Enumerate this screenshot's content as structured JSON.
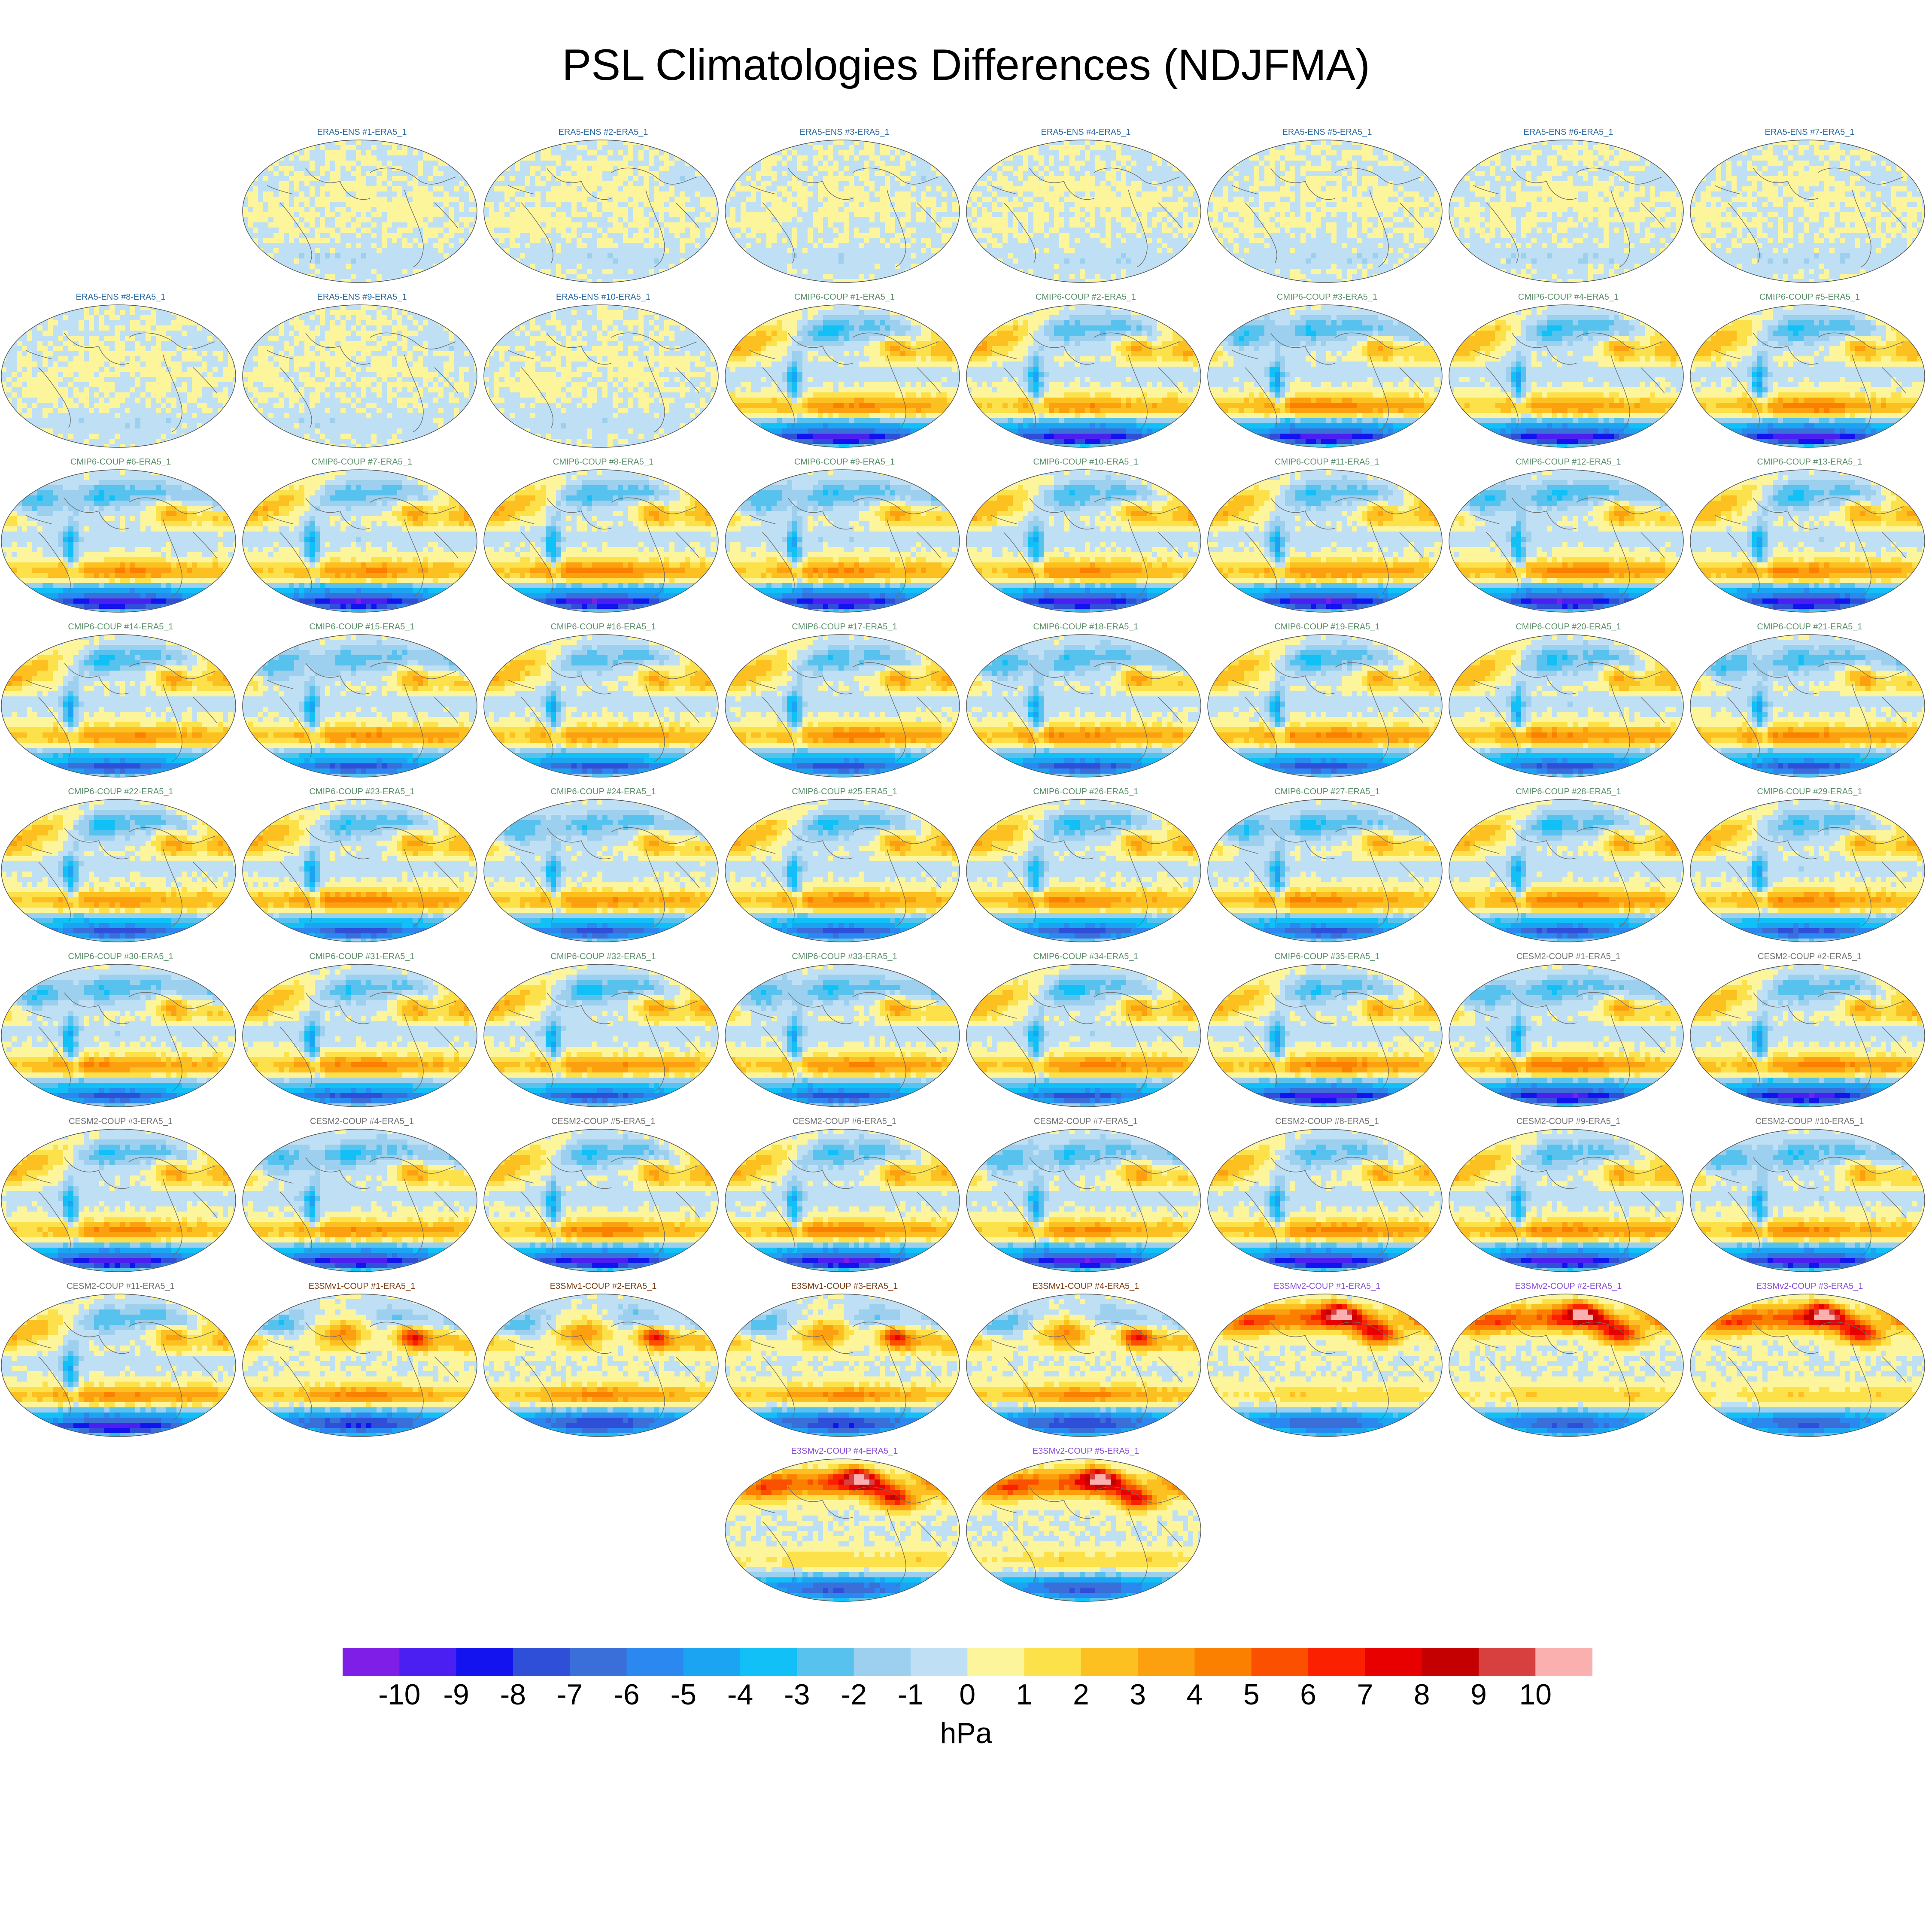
{
  "title": "PSL Climatologies Differences (NDJFMA)",
  "colors": {
    "ERA5-ENS": "#2b6aa0",
    "CMIP6-COUP": "#5a8f6a",
    "CESM2-COUP": "#707070",
    "E3SMv1-COUP": "#7a3a10",
    "E3SMv2-COUP": "#8a4fd8",
    "coastline": "#6b6b6b",
    "map_outline": "#555555"
  },
  "chart_data": {
    "type": "heatmap",
    "title": "PSL Climatologies Differences (NDJFMA)",
    "projection": "robinson",
    "variable": "PSL",
    "season": "NDJFMA",
    "units": "hPa",
    "reference": "ERA5_1",
    "grid": false,
    "colorbar": {
      "label": "hPa",
      "placement": "bottom",
      "levels": [
        -10,
        -9,
        -8,
        -7,
        -6,
        -5,
        -4,
        -3,
        -2,
        -1,
        0,
        1,
        2,
        3,
        4,
        5,
        6,
        7,
        8,
        9,
        10
      ],
      "tick_labels": [
        "-10",
        "-9",
        "-8",
        "-7",
        "-6",
        "-5",
        "-4",
        "-3",
        "-2",
        "-1",
        "0",
        "1",
        "2",
        "3",
        "4",
        "5",
        "6",
        "7",
        "8",
        "9",
        "10"
      ],
      "colors": [
        "#7e1ee6",
        "#4b1ff2",
        "#1313f0",
        "#2f4fd8",
        "#3a6ed8",
        "#2a88f0",
        "#1aa4f2",
        "#10c0f6",
        "#58c2ee",
        "#9cd0ee",
        "#bfe0f4",
        "#fdf59c",
        "#fde14a",
        "#fcc020",
        "#fca010",
        "#fb8000",
        "#fb5000",
        "#fb2000",
        "#e80000",
        "#c40000",
        "#d84040",
        "#fbb0b0"
      ]
    },
    "panels": [
      {
        "label": "ERA5-ENS   #1-ERA5_1",
        "group": "ERA5-ENS",
        "magnitude": 0.6
      },
      {
        "label": "ERA5-ENS   #2-ERA5_1",
        "group": "ERA5-ENS",
        "magnitude": 0.6
      },
      {
        "label": "ERA5-ENS   #3-ERA5_1",
        "group": "ERA5-ENS",
        "magnitude": 0.6
      },
      {
        "label": "ERA5-ENS   #4-ERA5_1",
        "group": "ERA5-ENS",
        "magnitude": 0.6
      },
      {
        "label": "ERA5-ENS   #5-ERA5_1",
        "group": "ERA5-ENS",
        "magnitude": 0.6
      },
      {
        "label": "ERA5-ENS   #6-ERA5_1",
        "group": "ERA5-ENS",
        "magnitude": 0.6
      },
      {
        "label": "ERA5-ENS   #7-ERA5_1",
        "group": "ERA5-ENS",
        "magnitude": 0.6
      },
      {
        "label": "ERA5-ENS   #8-ERA5_1",
        "group": "ERA5-ENS",
        "magnitude": 0.6
      },
      {
        "label": "ERA5-ENS   #9-ERA5_1",
        "group": "ERA5-ENS",
        "magnitude": 0.6
      },
      {
        "label": "ERA5-ENS   #10-ERA5_1",
        "group": "ERA5-ENS",
        "magnitude": 0.6
      },
      {
        "label": "CMIP6-COUP  #1-ERA5_1",
        "group": "CMIP6-COUP",
        "magnitude": 4
      },
      {
        "label": "CMIP6-COUP  #2-ERA5_1",
        "group": "CMIP6-COUP",
        "magnitude": 4
      },
      {
        "label": "CMIP6-COUP  #3-ERA5_1",
        "group": "CMIP6-COUP",
        "magnitude": 4
      },
      {
        "label": "CMIP6-COUP  #4-ERA5_1",
        "group": "CMIP6-COUP",
        "magnitude": 4
      },
      {
        "label": "CMIP6-COUP  #5-ERA5_1",
        "group": "CMIP6-COUP",
        "magnitude": 4
      },
      {
        "label": "CMIP6-COUP  #6-ERA5_1",
        "group": "CMIP6-COUP",
        "magnitude": 4
      },
      {
        "label": "CMIP6-COUP  #7-ERA5_1",
        "group": "CMIP6-COUP",
        "magnitude": 4
      },
      {
        "label": "CMIP6-COUP  #8-ERA5_1",
        "group": "CMIP6-COUP",
        "magnitude": 4
      },
      {
        "label": "CMIP6-COUP  #9-ERA5_1",
        "group": "CMIP6-COUP",
        "magnitude": 4
      },
      {
        "label": "CMIP6-COUP  #10-ERA5_1",
        "group": "CMIP6-COUP",
        "magnitude": 4
      },
      {
        "label": "CMIP6-COUP  #11-ERA5_1",
        "group": "CMIP6-COUP",
        "magnitude": 4
      },
      {
        "label": "CMIP6-COUP  #12-ERA5_1",
        "group": "CMIP6-COUP",
        "magnitude": 4
      },
      {
        "label": "CMIP6-COUP  #13-ERA5_1",
        "group": "CMIP6-COUP",
        "magnitude": 4
      },
      {
        "label": "CMIP6-COUP  #14-ERA5_1",
        "group": "CMIP6-COUP",
        "magnitude": 3
      },
      {
        "label": "CMIP6-COUP  #15-ERA5_1",
        "group": "CMIP6-COUP",
        "magnitude": 3
      },
      {
        "label": "CMIP6-COUP  #16-ERA5_1",
        "group": "CMIP6-COUP",
        "magnitude": 3
      },
      {
        "label": "CMIP6-COUP  #17-ERA5_1",
        "group": "CMIP6-COUP",
        "magnitude": 3
      },
      {
        "label": "CMIP6-COUP  #18-ERA5_1",
        "group": "CMIP6-COUP",
        "magnitude": 3
      },
      {
        "label": "CMIP6-COUP  #19-ERA5_1",
        "group": "CMIP6-COUP",
        "magnitude": 3
      },
      {
        "label": "CMIP6-COUP  #20-ERA5_1",
        "group": "CMIP6-COUP",
        "magnitude": 3
      },
      {
        "label": "CMIP6-COUP  #21-ERA5_1",
        "group": "CMIP6-COUP",
        "magnitude": 3
      },
      {
        "label": "CMIP6-COUP  #22-ERA5_1",
        "group": "CMIP6-COUP",
        "magnitude": 3
      },
      {
        "label": "CMIP6-COUP  #23-ERA5_1",
        "group": "CMIP6-COUP",
        "magnitude": 3
      },
      {
        "label": "CMIP6-COUP  #24-ERA5_1",
        "group": "CMIP6-COUP",
        "magnitude": 3
      },
      {
        "label": "CMIP6-COUP  #25-ERA5_1",
        "group": "CMIP6-COUP",
        "magnitude": 3
      },
      {
        "label": "CMIP6-COUP  #26-ERA5_1",
        "group": "CMIP6-COUP",
        "magnitude": 3
      },
      {
        "label": "CMIP6-COUP  #27-ERA5_1",
        "group": "CMIP6-COUP",
        "magnitude": 3
      },
      {
        "label": "CMIP6-COUP  #28-ERA5_1",
        "group": "CMIP6-COUP",
        "magnitude": 3
      },
      {
        "label": "CMIP6-COUP  #29-ERA5_1",
        "group": "CMIP6-COUP",
        "magnitude": 3
      },
      {
        "label": "CMIP6-COUP  #30-ERA5_1",
        "group": "CMIP6-COUP",
        "magnitude": 3
      },
      {
        "label": "CMIP6-COUP  #31-ERA5_1",
        "group": "CMIP6-COUP",
        "magnitude": 3
      },
      {
        "label": "CMIP6-COUP  #32-ERA5_1",
        "group": "CMIP6-COUP",
        "magnitude": 3
      },
      {
        "label": "CMIP6-COUP  #33-ERA5_1",
        "group": "CMIP6-COUP",
        "magnitude": 3
      },
      {
        "label": "CMIP6-COUP  #34-ERA5_1",
        "group": "CMIP6-COUP",
        "magnitude": 3
      },
      {
        "label": "CMIP6-COUP  #35-ERA5_1",
        "group": "CMIP6-COUP",
        "magnitude": 4
      },
      {
        "label": "CESM2-COUP  #1-ERA5_1",
        "group": "CESM2-COUP",
        "magnitude": 4
      },
      {
        "label": "CESM2-COUP  #2-ERA5_1",
        "group": "CESM2-COUP",
        "magnitude": 4
      },
      {
        "label": "CESM2-COUP  #3-ERA5_1",
        "group": "CESM2-COUP",
        "magnitude": 4
      },
      {
        "label": "CESM2-COUP  #4-ERA5_1",
        "group": "CESM2-COUP",
        "magnitude": 4
      },
      {
        "label": "CESM2-COUP  #5-ERA5_1",
        "group": "CESM2-COUP",
        "magnitude": 4
      },
      {
        "label": "CESM2-COUP  #6-ERA5_1",
        "group": "CESM2-COUP",
        "magnitude": 4
      },
      {
        "label": "CESM2-COUP  #7-ERA5_1",
        "group": "CESM2-COUP",
        "magnitude": 4
      },
      {
        "label": "CESM2-COUP  #8-ERA5_1",
        "group": "CESM2-COUP",
        "magnitude": 4
      },
      {
        "label": "CESM2-COUP  #9-ERA5_1",
        "group": "CESM2-COUP",
        "magnitude": 4
      },
      {
        "label": "CESM2-COUP  #10-ERA5_1",
        "group": "CESM2-COUP",
        "magnitude": 4
      },
      {
        "label": "CESM2-COUP  #11-ERA5_1",
        "group": "CESM2-COUP",
        "magnitude": 4
      },
      {
        "label": "E3SMv1-COUP  #1-ERA5_1",
        "group": "E3SMv1-COUP",
        "magnitude": 4.5
      },
      {
        "label": "E3SMv1-COUP  #2-ERA5_1",
        "group": "E3SMv1-COUP",
        "magnitude": 4.5
      },
      {
        "label": "E3SMv1-COUP  #3-ERA5_1",
        "group": "E3SMv1-COUP",
        "magnitude": 4.5
      },
      {
        "label": "E3SMv1-COUP  #4-ERA5_1",
        "group": "E3SMv1-COUP",
        "magnitude": 4.5
      },
      {
        "label": "E3SMv2-COUP  #1-ERA5_1",
        "group": "E3SMv2-COUP",
        "magnitude": 5.5
      },
      {
        "label": "E3SMv2-COUP  #2-ERA5_1",
        "group": "E3SMv2-COUP",
        "magnitude": 5.5
      },
      {
        "label": "E3SMv2-COUP  #3-ERA5_1",
        "group": "E3SMv2-COUP",
        "magnitude": 5.5
      },
      {
        "label": "E3SMv2-COUP  #4-ERA5_1",
        "group": "E3SMv2-COUP",
        "magnitude": 5.5
      },
      {
        "label": "E3SMv2-COUP  #5-ERA5_1",
        "group": "E3SMv2-COUP",
        "magnitude": 5.5
      }
    ]
  }
}
